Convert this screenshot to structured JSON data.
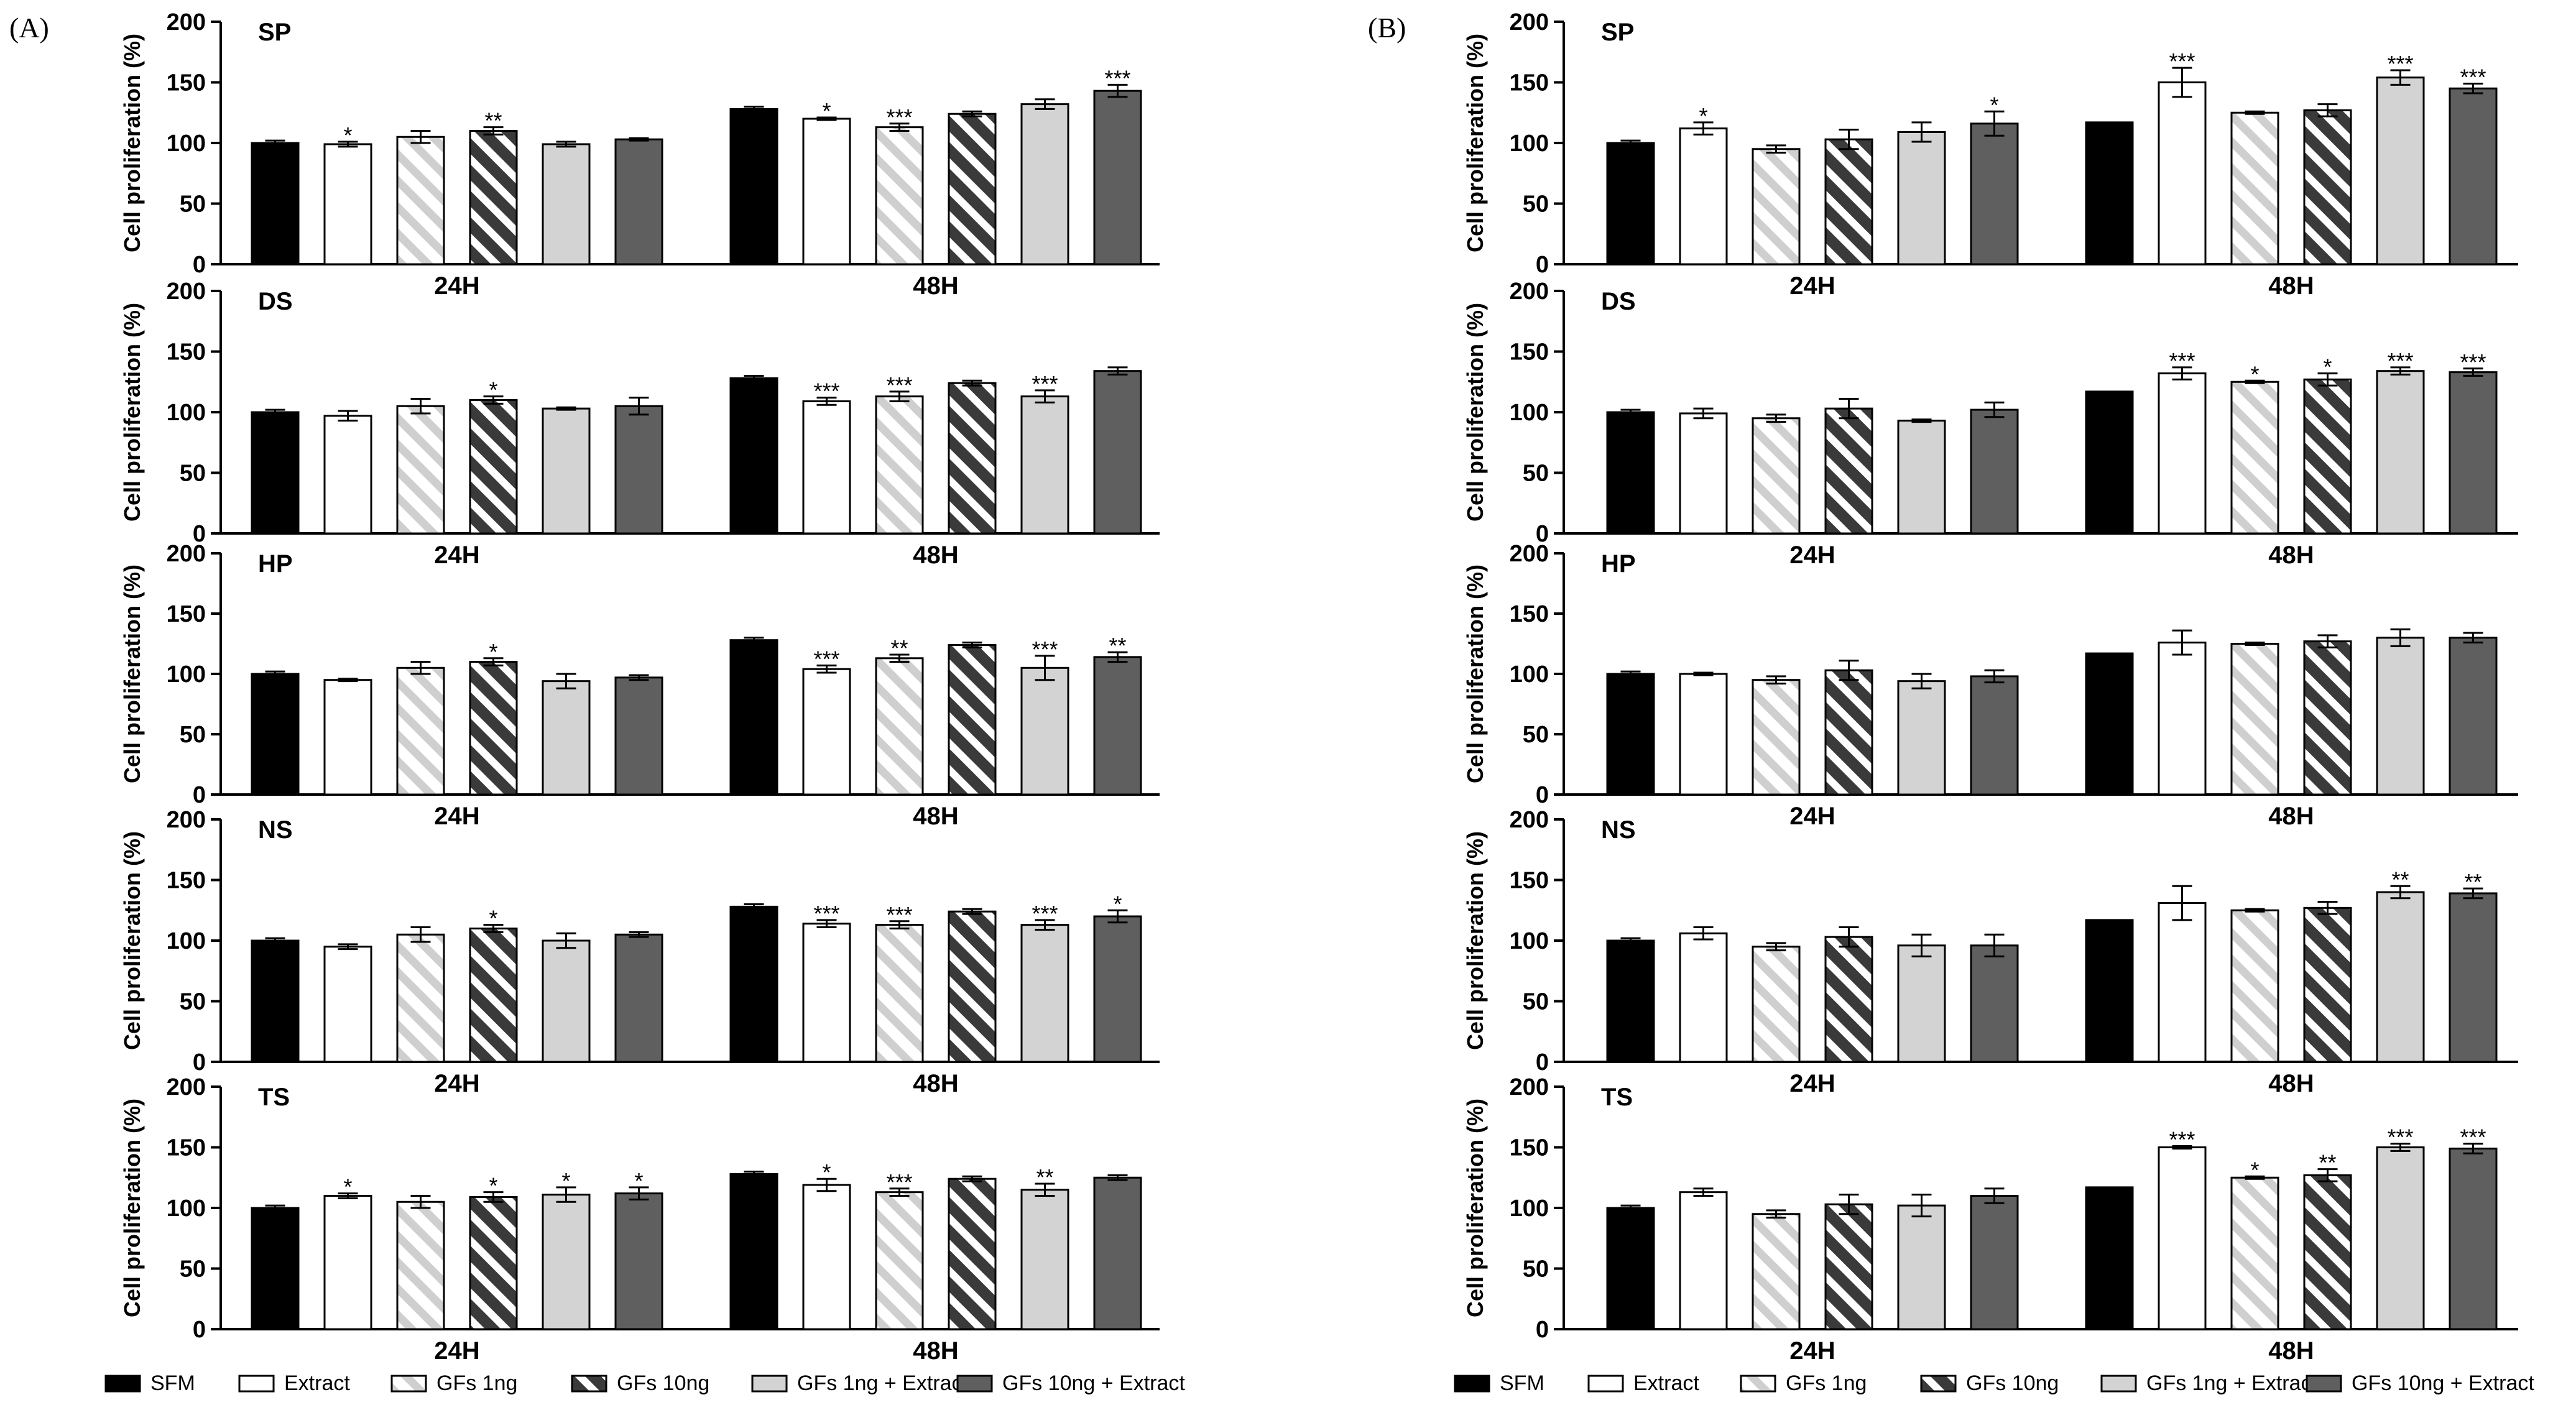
{
  "figure": {
    "panels": [
      {
        "label": "(A)"
      },
      {
        "label": "(B)"
      }
    ],
    "legend": [
      {
        "name": "SFM",
        "style": "solid-black"
      },
      {
        "name": "Extract",
        "style": "white"
      },
      {
        "name": "GFs 1ng",
        "style": "light-hatch"
      },
      {
        "name": "GFs 10ng",
        "style": "dark-hatch"
      },
      {
        "name": "GFs 1ng + Extract",
        "style": "light-gray"
      },
      {
        "name": "GFs 10ng + Extract",
        "style": "dark-gray"
      }
    ],
    "colors": {
      "SFM": "#000000",
      "dark_hatch": "#3a3a3a",
      "light_gray": "#d3d3d3",
      "dark_gray": "#5f5f5f",
      "light_hatch": "#cfcfcf"
    }
  },
  "chart_data": [
    {
      "panel": "A",
      "type": "bar",
      "title": "SP",
      "ylabel": "Cell proliferation (%)",
      "ylim": [
        0,
        200
      ],
      "yticks": [
        0,
        50,
        100,
        150,
        200
      ],
      "categories": [
        "24H",
        "48H"
      ],
      "series": [
        {
          "name": "SFM",
          "values": [
            100,
            128
          ],
          "errors": [
            2,
            2
          ],
          "sig": [
            "",
            ""
          ]
        },
        {
          "name": "Extract",
          "values": [
            99,
            120
          ],
          "errors": [
            2,
            1
          ],
          "sig": [
            "*",
            "*"
          ]
        },
        {
          "name": "GFs 1ng",
          "values": [
            105,
            113
          ],
          "errors": [
            5,
            3
          ],
          "sig": [
            "",
            "***"
          ]
        },
        {
          "name": "GFs 10ng",
          "values": [
            110,
            124
          ],
          "errors": [
            3,
            2
          ],
          "sig": [
            "**",
            ""
          ]
        },
        {
          "name": "GFs 1ng + Extract",
          "values": [
            99,
            132
          ],
          "errors": [
            2,
            4
          ],
          "sig": [
            "",
            ""
          ]
        },
        {
          "name": "GFs 10ng + Extract",
          "values": [
            103,
            143
          ],
          "errors": [
            1,
            5
          ],
          "sig": [
            "",
            "***"
          ]
        }
      ]
    },
    {
      "panel": "A",
      "type": "bar",
      "title": "DS",
      "ylabel": "Cell proliferation (%)",
      "ylim": [
        0,
        200
      ],
      "yticks": [
        0,
        50,
        100,
        150,
        200
      ],
      "categories": [
        "24H",
        "48H"
      ],
      "series": [
        {
          "name": "SFM",
          "values": [
            100,
            128
          ],
          "errors": [
            2,
            2
          ],
          "sig": [
            "",
            ""
          ]
        },
        {
          "name": "Extract",
          "values": [
            97,
            109
          ],
          "errors": [
            4,
            3
          ],
          "sig": [
            "",
            "***"
          ]
        },
        {
          "name": "GFs 1ng",
          "values": [
            105,
            113
          ],
          "errors": [
            6,
            4
          ],
          "sig": [
            "",
            "***"
          ]
        },
        {
          "name": "GFs 10ng",
          "values": [
            110,
            124
          ],
          "errors": [
            3,
            2
          ],
          "sig": [
            "*",
            ""
          ]
        },
        {
          "name": "GFs 1ng + Extract",
          "values": [
            103,
            113
          ],
          "errors": [
            1,
            5
          ],
          "sig": [
            "",
            "***"
          ]
        },
        {
          "name": "GFs 10ng + Extract",
          "values": [
            105,
            134
          ],
          "errors": [
            7,
            3
          ],
          "sig": [
            "",
            ""
          ]
        }
      ]
    },
    {
      "panel": "A",
      "type": "bar",
      "title": "HP",
      "ylabel": "Cell proliferation (%)",
      "ylim": [
        0,
        200
      ],
      "yticks": [
        0,
        50,
        100,
        150,
        200
      ],
      "categories": [
        "24H",
        "48H"
      ],
      "series": [
        {
          "name": "SFM",
          "values": [
            100,
            128
          ],
          "errors": [
            2,
            2
          ],
          "sig": [
            "",
            ""
          ]
        },
        {
          "name": "Extract",
          "values": [
            95,
            104
          ],
          "errors": [
            1,
            3
          ],
          "sig": [
            "",
            "***"
          ]
        },
        {
          "name": "GFs 1ng",
          "values": [
            105,
            113
          ],
          "errors": [
            5,
            3
          ],
          "sig": [
            "",
            "**"
          ]
        },
        {
          "name": "GFs 10ng",
          "values": [
            110,
            124
          ],
          "errors": [
            3,
            2
          ],
          "sig": [
            "*",
            ""
          ]
        },
        {
          "name": "GFs 1ng + Extract",
          "values": [
            94,
            105
          ],
          "errors": [
            6,
            10
          ],
          "sig": [
            "",
            "***"
          ]
        },
        {
          "name": "GFs 10ng + Extract",
          "values": [
            97,
            114
          ],
          "errors": [
            2,
            4
          ],
          "sig": [
            "",
            "**"
          ]
        }
      ]
    },
    {
      "panel": "A",
      "type": "bar",
      "title": "NS",
      "ylabel": "Cell proliferation (%)",
      "ylim": [
        0,
        200
      ],
      "yticks": [
        0,
        50,
        100,
        150,
        200
      ],
      "categories": [
        "24H",
        "48H"
      ],
      "series": [
        {
          "name": "SFM",
          "values": [
            100,
            128
          ],
          "errors": [
            2,
            2
          ],
          "sig": [
            "",
            ""
          ]
        },
        {
          "name": "Extract",
          "values": [
            95,
            114
          ],
          "errors": [
            2,
            3
          ],
          "sig": [
            "",
            "***"
          ]
        },
        {
          "name": "GFs 1ng",
          "values": [
            105,
            113
          ],
          "errors": [
            6,
            3
          ],
          "sig": [
            "",
            "***"
          ]
        },
        {
          "name": "GFs 10ng",
          "values": [
            110,
            124
          ],
          "errors": [
            3,
            2
          ],
          "sig": [
            "*",
            ""
          ]
        },
        {
          "name": "GFs 1ng + Extract",
          "values": [
            100,
            113
          ],
          "errors": [
            6,
            4
          ],
          "sig": [
            "",
            "***"
          ]
        },
        {
          "name": "GFs 10ng + Extract",
          "values": [
            105,
            120
          ],
          "errors": [
            2,
            5
          ],
          "sig": [
            "",
            "*"
          ]
        }
      ]
    },
    {
      "panel": "A",
      "type": "bar",
      "title": "TS",
      "ylabel": "Cell proliferation (%)",
      "ylim": [
        0,
        200
      ],
      "yticks": [
        0,
        50,
        100,
        150,
        200
      ],
      "categories": [
        "24H",
        "48H"
      ],
      "series": [
        {
          "name": "SFM",
          "values": [
            100,
            128
          ],
          "errors": [
            2,
            2
          ],
          "sig": [
            "",
            ""
          ]
        },
        {
          "name": "Extract",
          "values": [
            110,
            119
          ],
          "errors": [
            2,
            5
          ],
          "sig": [
            "*",
            "*"
          ]
        },
        {
          "name": "GFs 1ng",
          "values": [
            105,
            113
          ],
          "errors": [
            5,
            3
          ],
          "sig": [
            "",
            "***"
          ]
        },
        {
          "name": "GFs 10ng",
          "values": [
            109,
            124
          ],
          "errors": [
            4,
            2
          ],
          "sig": [
            "*",
            ""
          ]
        },
        {
          "name": "GFs 1ng + Extract",
          "values": [
            111,
            115
          ],
          "errors": [
            6,
            5
          ],
          "sig": [
            "*",
            "**"
          ]
        },
        {
          "name": "GFs 10ng + Extract",
          "values": [
            112,
            125
          ],
          "errors": [
            5,
            2
          ],
          "sig": [
            "*",
            ""
          ]
        }
      ]
    },
    {
      "panel": "B",
      "type": "bar",
      "title": "SP",
      "ylabel": "Cell proliferation (%)",
      "ylim": [
        0,
        200
      ],
      "yticks": [
        0,
        50,
        100,
        150,
        200
      ],
      "categories": [
        "24H",
        "48H"
      ],
      "series": [
        {
          "name": "SFM",
          "values": [
            100,
            117
          ],
          "errors": [
            2,
            0
          ],
          "sig": [
            "",
            ""
          ]
        },
        {
          "name": "Extract",
          "values": [
            112,
            150
          ],
          "errors": [
            5,
            12
          ],
          "sig": [
            "*",
            "***"
          ]
        },
        {
          "name": "GFs 1ng",
          "values": [
            95,
            125
          ],
          "errors": [
            3,
            1
          ],
          "sig": [
            "",
            ""
          ]
        },
        {
          "name": "GFs 10ng",
          "values": [
            103,
            127
          ],
          "errors": [
            8,
            5
          ],
          "sig": [
            "",
            ""
          ]
        },
        {
          "name": "GFs 1ng + Extract",
          "values": [
            109,
            154
          ],
          "errors": [
            8,
            6
          ],
          "sig": [
            "",
            "***"
          ]
        },
        {
          "name": "GFs 10ng + Extract",
          "values": [
            116,
            145
          ],
          "errors": [
            10,
            4
          ],
          "sig": [
            "*",
            "***"
          ]
        }
      ]
    },
    {
      "panel": "B",
      "type": "bar",
      "title": "DS",
      "ylabel": "Cell proliferation (%)",
      "ylim": [
        0,
        200
      ],
      "yticks": [
        0,
        50,
        100,
        150,
        200
      ],
      "categories": [
        "24H",
        "48H"
      ],
      "series": [
        {
          "name": "SFM",
          "values": [
            100,
            117
          ],
          "errors": [
            2,
            0
          ],
          "sig": [
            "",
            ""
          ]
        },
        {
          "name": "Extract",
          "values": [
            99,
            132
          ],
          "errors": [
            4,
            5
          ],
          "sig": [
            "",
            "***"
          ]
        },
        {
          "name": "GFs 1ng",
          "values": [
            95,
            125
          ],
          "errors": [
            3,
            1
          ],
          "sig": [
            "",
            "*"
          ]
        },
        {
          "name": "GFs 10ng",
          "values": [
            103,
            127
          ],
          "errors": [
            8,
            5
          ],
          "sig": [
            "",
            "*"
          ]
        },
        {
          "name": "GFs 1ng + Extract",
          "values": [
            93,
            134
          ],
          "errors": [
            1,
            3
          ],
          "sig": [
            "",
            "***"
          ]
        },
        {
          "name": "GFs 10ng + Extract",
          "values": [
            102,
            133
          ],
          "errors": [
            6,
            3
          ],
          "sig": [
            "",
            "***"
          ]
        }
      ]
    },
    {
      "panel": "B",
      "type": "bar",
      "title": "HP",
      "ylabel": "Cell proliferation (%)",
      "ylim": [
        0,
        200
      ],
      "yticks": [
        0,
        50,
        100,
        150,
        200
      ],
      "categories": [
        "24H",
        "48H"
      ],
      "series": [
        {
          "name": "SFM",
          "values": [
            100,
            117
          ],
          "errors": [
            2,
            0
          ],
          "sig": [
            "",
            ""
          ]
        },
        {
          "name": "Extract",
          "values": [
            100,
            126
          ],
          "errors": [
            1,
            10
          ],
          "sig": [
            "",
            ""
          ]
        },
        {
          "name": "GFs 1ng",
          "values": [
            95,
            125
          ],
          "errors": [
            3,
            1
          ],
          "sig": [
            "",
            ""
          ]
        },
        {
          "name": "GFs 10ng",
          "values": [
            103,
            127
          ],
          "errors": [
            8,
            5
          ],
          "sig": [
            "",
            ""
          ]
        },
        {
          "name": "GFs 1ng + Extract",
          "values": [
            94,
            130
          ],
          "errors": [
            6,
            7
          ],
          "sig": [
            "",
            ""
          ]
        },
        {
          "name": "GFs 10ng + Extract",
          "values": [
            98,
            130
          ],
          "errors": [
            5,
            4
          ],
          "sig": [
            "",
            ""
          ]
        }
      ]
    },
    {
      "panel": "B",
      "type": "bar",
      "title": "NS",
      "ylabel": "Cell proliferation (%)",
      "ylim": [
        0,
        200
      ],
      "yticks": [
        0,
        50,
        100,
        150,
        200
      ],
      "categories": [
        "24H",
        "48H"
      ],
      "series": [
        {
          "name": "SFM",
          "values": [
            100,
            117
          ],
          "errors": [
            2,
            0
          ],
          "sig": [
            "",
            ""
          ]
        },
        {
          "name": "Extract",
          "values": [
            106,
            131
          ],
          "errors": [
            5,
            14
          ],
          "sig": [
            "",
            ""
          ]
        },
        {
          "name": "GFs 1ng",
          "values": [
            95,
            125
          ],
          "errors": [
            3,
            1
          ],
          "sig": [
            "",
            ""
          ]
        },
        {
          "name": "GFs 10ng",
          "values": [
            103,
            127
          ],
          "errors": [
            8,
            5
          ],
          "sig": [
            "",
            ""
          ]
        },
        {
          "name": "GFs 1ng + Extract",
          "values": [
            96,
            140
          ],
          "errors": [
            9,
            5
          ],
          "sig": [
            "",
            "**"
          ]
        },
        {
          "name": "GFs 10ng + Extract",
          "values": [
            96,
            139
          ],
          "errors": [
            9,
            4
          ],
          "sig": [
            "",
            "**"
          ]
        }
      ]
    },
    {
      "panel": "B",
      "type": "bar",
      "title": "TS",
      "ylabel": "Cell proliferation (%)",
      "ylim": [
        0,
        200
      ],
      "yticks": [
        0,
        50,
        100,
        150,
        200
      ],
      "categories": [
        "24H",
        "48H"
      ],
      "series": [
        {
          "name": "SFM",
          "values": [
            100,
            117
          ],
          "errors": [
            2,
            0
          ],
          "sig": [
            "",
            ""
          ]
        },
        {
          "name": "Extract",
          "values": [
            113,
            150
          ],
          "errors": [
            3,
            1
          ],
          "sig": [
            "",
            "***"
          ]
        },
        {
          "name": "GFs 1ng",
          "values": [
            95,
            125
          ],
          "errors": [
            3,
            1
          ],
          "sig": [
            "",
            "*"
          ]
        },
        {
          "name": "GFs 10ng",
          "values": [
            103,
            127
          ],
          "errors": [
            8,
            5
          ],
          "sig": [
            "",
            "**"
          ]
        },
        {
          "name": "GFs 1ng + Extract",
          "values": [
            102,
            150
          ],
          "errors": [
            9,
            3
          ],
          "sig": [
            "",
            "***"
          ]
        },
        {
          "name": "GFs 10ng + Extract",
          "values": [
            110,
            149
          ],
          "errors": [
            6,
            4
          ],
          "sig": [
            "",
            "***"
          ]
        }
      ]
    }
  ]
}
